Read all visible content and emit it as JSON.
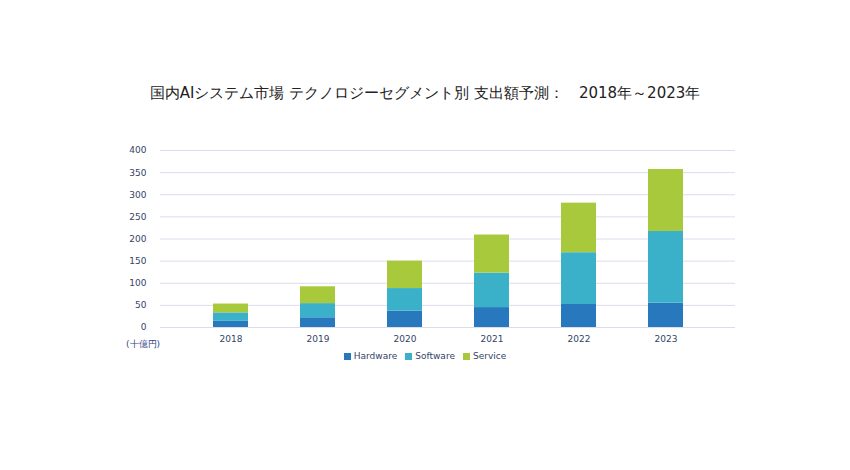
{
  "chart_data": {
    "type": "bar",
    "stacked": true,
    "title": "国内AIシステム市場 テクノロジーセグメント別 支出額予測：　2018年～2023年",
    "ylabel": "(十億円)",
    "categories": [
      "2018",
      "2019",
      "2020",
      "2021",
      "2022",
      "2023"
    ],
    "series": [
      {
        "name": "Hardware",
        "color": "#2878bd",
        "values": [
          14,
          22,
          37,
          45,
          52,
          55
        ]
      },
      {
        "name": "Software",
        "color": "#3bb0c9",
        "values": [
          19,
          32,
          51,
          78,
          117,
          162
        ]
      },
      {
        "name": "Service",
        "color": "#a8c93b",
        "values": [
          20,
          38,
          62,
          86,
          112,
          140
        ]
      }
    ],
    "ylim": [
      0,
      400
    ],
    "yticks": [
      0,
      50,
      100,
      150,
      200,
      250,
      300,
      350,
      400
    ],
    "grid": true,
    "legend": "bottom"
  }
}
